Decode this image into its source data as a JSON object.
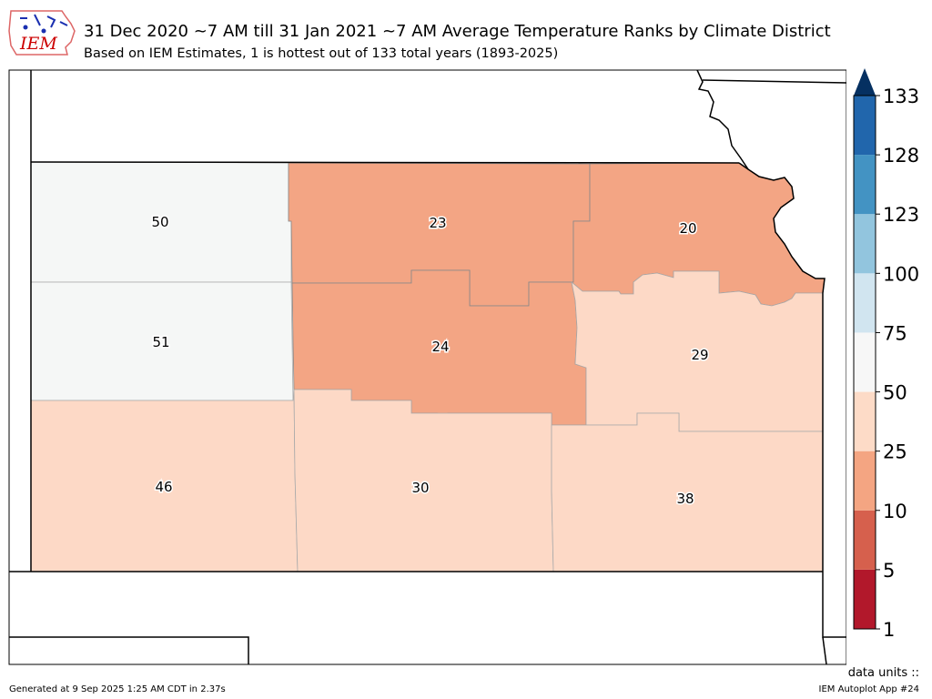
{
  "header": {
    "title": "31 Dec 2020 ~7 AM till 31 Jan 2021 ~7 AM Average Temperature Ranks by Climate District",
    "subtitle": "Based on IEM Estimates, 1 is hottest out of 133 total years (1893-2025)"
  },
  "logo": {
    "text": "IEM",
    "icon": "iem-logo-icon"
  },
  "districts": [
    {
      "name": "northwest",
      "rank": "50",
      "color": "#f5f7f6"
    },
    {
      "name": "north-central",
      "rank": "23",
      "color": "#f3a584"
    },
    {
      "name": "northeast",
      "rank": "20",
      "color": "#f3a584"
    },
    {
      "name": "west-central",
      "rank": "51",
      "color": "#f5f7f6"
    },
    {
      "name": "central",
      "rank": "24",
      "color": "#f3a584"
    },
    {
      "name": "east-central",
      "rank": "29",
      "color": "#fdd9c6"
    },
    {
      "name": "southwest",
      "rank": "46",
      "color": "#fdd9c6"
    },
    {
      "name": "south-central",
      "rank": "30",
      "color": "#fdd9c6"
    },
    {
      "name": "southeast",
      "rank": "38",
      "color": "#fdd9c6"
    }
  ],
  "colorbar": {
    "labels": [
      "1",
      "5",
      "10",
      "25",
      "50",
      "75",
      "100",
      "123",
      "128",
      "133"
    ],
    "colors": [
      "#b2182b",
      "#d6604d",
      "#f4a582",
      "#fddbc7",
      "#f7f7f7",
      "#d1e5f0",
      "#92c5de",
      "#4393c3",
      "#2166ac"
    ],
    "extend_color": "#053061"
  },
  "footer": {
    "generated": "Generated at 9 Sep 2025 1:25 AM CDT in 2.37s",
    "app": "IEM Autoplot App #24",
    "units": "data units ::"
  }
}
